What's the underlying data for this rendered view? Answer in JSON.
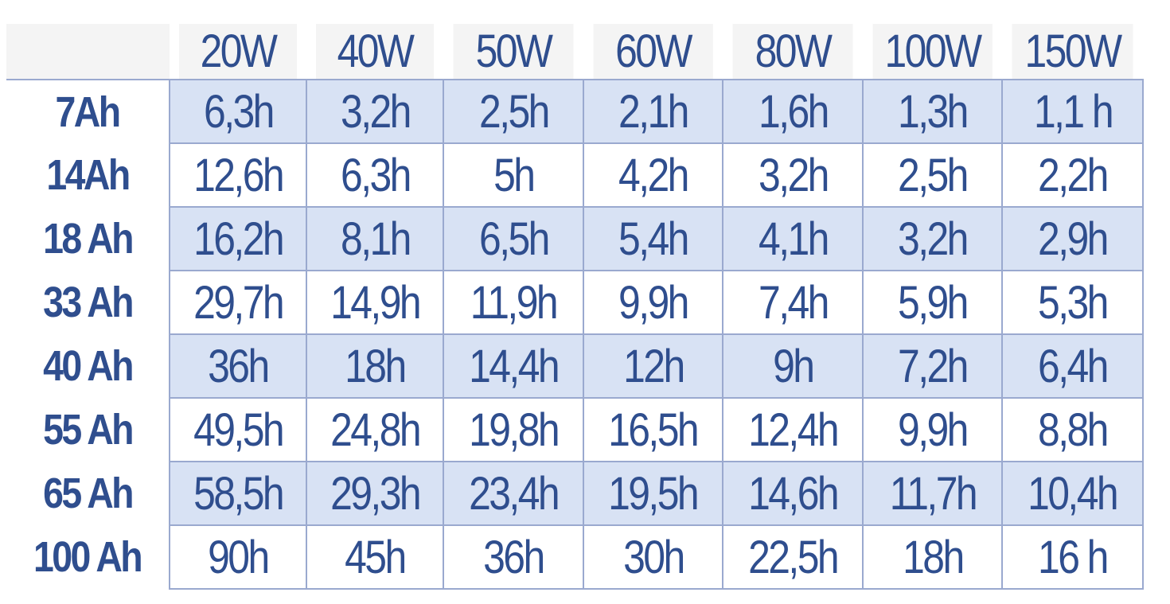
{
  "table": {
    "columns": [
      "20W",
      "40W",
      "50W",
      "60W",
      "80W",
      "100W",
      "150W"
    ],
    "rows": [
      {
        "label": "7Ah",
        "cells": [
          "6,3h",
          "3,2h",
          "2,5h",
          "2,1h",
          "1,6h",
          "1,3h",
          "1,1 h"
        ]
      },
      {
        "label": "14Ah",
        "cells": [
          "12,6h",
          "6,3h",
          "5h",
          "4,2h",
          "3,2h",
          "2,5h",
          "2,2h"
        ]
      },
      {
        "label": "18 Ah",
        "cells": [
          "16,2h",
          "8,1h",
          "6,5h",
          "5,4h",
          "4,1h",
          "3,2h",
          "2,9h"
        ]
      },
      {
        "label": "33 Ah",
        "cells": [
          "29,7h",
          "14,9h",
          "11,9h",
          "9,9h",
          "7,4h",
          "5,9h",
          "5,3h"
        ]
      },
      {
        "label": "40 Ah",
        "cells": [
          "36h",
          "18h",
          "14,4h",
          "12h",
          "9h",
          "7,2h",
          "6,4h"
        ]
      },
      {
        "label": "55 Ah",
        "cells": [
          "49,5h",
          "24,8h",
          "19,8h",
          "16,5h",
          "12,4h",
          "9,9h",
          "8,8h"
        ]
      },
      {
        "label": "65 Ah",
        "cells": [
          "58,5h",
          "29,3h",
          "23,4h",
          "19,5h",
          "14,6h",
          "11,7h",
          "10,4h"
        ]
      },
      {
        "label": "100 Ah",
        "cells": [
          "90h",
          "45h",
          "36h",
          "30h",
          "22,5h",
          "18h",
          "16 h"
        ]
      }
    ]
  },
  "colors": {
    "text": "#2f4e8e",
    "shaded_row": "#d8e2f4",
    "border": "#9aa9cf",
    "header_background": "#f4f4f4"
  }
}
